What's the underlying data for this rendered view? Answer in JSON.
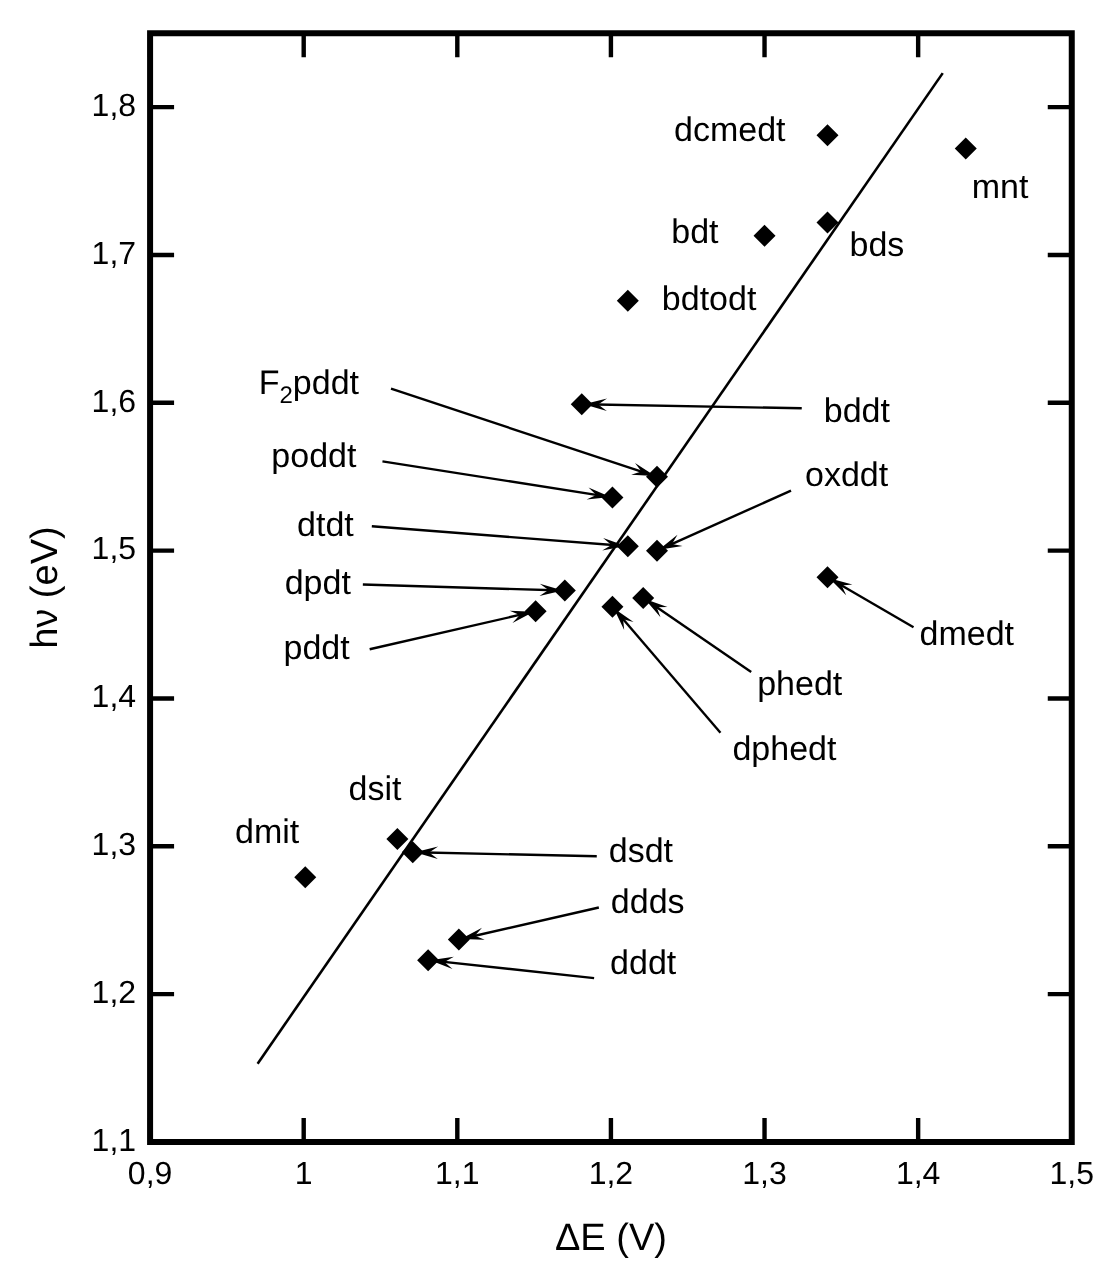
{
  "chart_data": {
    "type": "scatter",
    "xlabel": "ΔE (V)",
    "ylabel": "hν (eV)",
    "xlim": [
      0.9,
      1.5
    ],
    "ylim": [
      1.1,
      1.85
    ],
    "xticks": [
      {
        "value": 0.9,
        "label": "0,9"
      },
      {
        "value": 1,
        "label": "1"
      },
      {
        "value": 1.1,
        "label": "1,1"
      },
      {
        "value": 1.2,
        "label": "1,2"
      },
      {
        "value": 1.3,
        "label": "1,3"
      },
      {
        "value": 1.4,
        "label": "1,4"
      },
      {
        "value": 1.5,
        "label": "1,5"
      }
    ],
    "yticks": [
      {
        "value": 1.1,
        "label": "1,1"
      },
      {
        "value": 1.2,
        "label": "1,2"
      },
      {
        "value": 1.3,
        "label": "1,3"
      },
      {
        "value": 1.4,
        "label": "1,4"
      },
      {
        "value": 1.5,
        "label": "1,5"
      },
      {
        "value": 1.6,
        "label": "1,6"
      },
      {
        "value": 1.7,
        "label": "1,7"
      },
      {
        "value": 1.8,
        "label": "1,8"
      }
    ],
    "grid": false,
    "legend": false,
    "marker": "diamond",
    "series": [
      {
        "type": "scatter",
        "color": "#000000",
        "x": [
          1.341,
          1.431,
          1.341,
          1.3,
          1.211,
          1.181,
          1.23,
          1.201,
          1.211,
          1.23,
          1.17,
          1.151,
          1.221,
          1.201,
          1.341,
          1.001,
          1.061,
          1.071,
          1.101,
          1.081
        ],
        "values": [
          1.781,
          1.772,
          1.722,
          1.713,
          1.669,
          1.599,
          1.55,
          1.536,
          1.503,
          1.5,
          1.473,
          1.459,
          1.468,
          1.462,
          1.482,
          1.279,
          1.305,
          1.296,
          1.237,
          1.223
        ]
      },
      {
        "type": "line",
        "color": "#000000",
        "x": [
          0.97,
          1.416
        ],
        "values": [
          1.153,
          1.823
        ],
        "marker": "none",
        "line_style": "solid"
      }
    ],
    "annotations": [
      {
        "text": "dcmedt",
        "x": 1.341,
        "y": 1.781
      },
      {
        "text": "mnt",
        "x": 1.431,
        "y": 1.772
      },
      {
        "text": "bds",
        "x": 1.341,
        "y": 1.722
      },
      {
        "text": "bdt",
        "x": 1.3,
        "y": 1.713
      },
      {
        "text": "bdtodt",
        "x": 1.211,
        "y": 1.669
      },
      {
        "text": "bddt",
        "x": 1.181,
        "y": 1.599
      },
      {
        "text": "F$_{2}$pddt",
        "x": 1.23,
        "y": 1.55
      },
      {
        "text": "poddt",
        "x": 1.201,
        "y": 1.536
      },
      {
        "text": "dtdt",
        "x": 1.211,
        "y": 1.503
      },
      {
        "text": "oxddt",
        "x": 1.23,
        "y": 1.5
      },
      {
        "text": "dpdt",
        "x": 1.17,
        "y": 1.473
      },
      {
        "text": "pddt",
        "x": 1.151,
        "y": 1.459
      },
      {
        "text": "phedt",
        "x": 1.221,
        "y": 1.468
      },
      {
        "text": "dphedt",
        "x": 1.201,
        "y": 1.462
      },
      {
        "text": "dmedt",
        "x": 1.341,
        "y": 1.482
      },
      {
        "text": "dmit",
        "x": 1.001,
        "y": 1.279
      },
      {
        "text": "dsit",
        "x": 1.061,
        "y": 1.305
      },
      {
        "text": "dsdt",
        "x": 1.071,
        "y": 1.296
      },
      {
        "text": "ddds",
        "x": 1.101,
        "y": 1.237
      },
      {
        "text": "dddt",
        "x": 1.081,
        "y": 1.223
      }
    ]
  }
}
